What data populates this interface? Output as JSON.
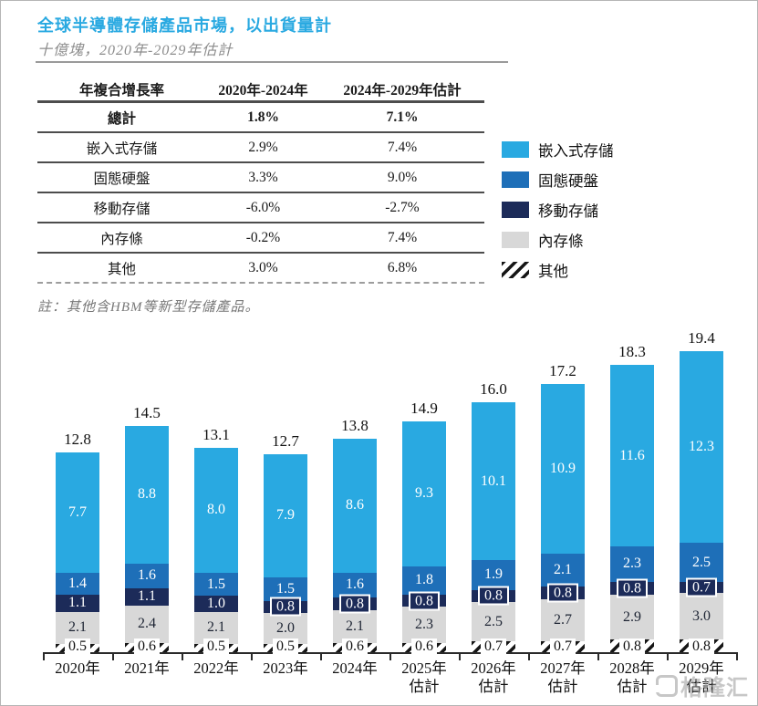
{
  "page": {
    "title": "全球半導體存儲產品市場，以出貨量計",
    "subtitle": "十億塊，2020年-2029年估計",
    "note": "註：其他含HBM等新型存儲產品。",
    "watermark": "格隆汇"
  },
  "colors": {
    "title_blue": "#29a9e1",
    "embedded": "#29a9e1",
    "ssd": "#1e6fb8",
    "mobile": "#1c2b59",
    "memory": "#d8d8d8",
    "stripe_dark": "#161616",
    "axis": "#2a2a2a"
  },
  "table": {
    "header": [
      "年複合增長率",
      "2020年-2024年",
      "2024年-2029年估計"
    ],
    "rows": [
      {
        "label": "總計",
        "cagr_2020_2024": "1.8%",
        "cagr_2024_2029": "7.1%",
        "bold": true
      },
      {
        "label": "嵌入式存儲",
        "cagr_2020_2024": "2.9%",
        "cagr_2024_2029": "7.4%",
        "bold": false
      },
      {
        "label": "固態硬盤",
        "cagr_2020_2024": "3.3%",
        "cagr_2024_2029": "9.0%",
        "bold": false
      },
      {
        "label": "移動存儲",
        "cagr_2020_2024": "-6.0%",
        "cagr_2024_2029": "-2.7%",
        "bold": false
      },
      {
        "label": "內存條",
        "cagr_2020_2024": "-0.2%",
        "cagr_2024_2029": "7.4%",
        "bold": false
      },
      {
        "label": "其他",
        "cagr_2020_2024": "3.0%",
        "cagr_2024_2029": "6.8%",
        "bold": false
      }
    ]
  },
  "legend": [
    {
      "label": "嵌入式存儲",
      "swatch": "embedded"
    },
    {
      "label": "固態硬盤",
      "swatch": "ssd"
    },
    {
      "label": "移動存儲",
      "swatch": "mobile"
    },
    {
      "label": "內存條",
      "swatch": "memory"
    },
    {
      "label": "其他",
      "swatch": "stripes"
    }
  ],
  "chart_data": {
    "type": "bar",
    "stacked": true,
    "title": "全球半導體存儲產品市場，以出貨量計",
    "unit": "十億塊",
    "categories": [
      "2020年",
      "2021年",
      "2022年",
      "2023年",
      "2024年",
      "2025年估計",
      "2026年估計",
      "2027年估計",
      "2028年估計",
      "2029年估計"
    ],
    "category_lines": [
      [
        "2020年"
      ],
      [
        "2021年"
      ],
      [
        "2022年"
      ],
      [
        "2023年"
      ],
      [
        "2024年"
      ],
      [
        "2025年",
        "估計"
      ],
      [
        "2026年",
        "估計"
      ],
      [
        "2027年",
        "估計"
      ],
      [
        "2028年",
        "估計"
      ],
      [
        "2029年",
        "估計"
      ]
    ],
    "series": [
      {
        "key": "embedded",
        "name": "嵌入式存儲",
        "color": "#29a9e1",
        "values": [
          7.7,
          8.8,
          8.0,
          7.9,
          8.6,
          9.3,
          10.1,
          10.9,
          11.6,
          12.3
        ]
      },
      {
        "key": "ssd",
        "name": "固態硬盤",
        "color": "#1e6fb8",
        "values": [
          1.4,
          1.6,
          1.5,
          1.5,
          1.6,
          1.8,
          1.9,
          2.1,
          2.3,
          2.5
        ]
      },
      {
        "key": "mobile",
        "name": "移動存儲",
        "color": "#1c2b59",
        "values": [
          1.1,
          1.1,
          1.0,
          0.8,
          0.8,
          0.8,
          0.8,
          0.8,
          0.8,
          0.7
        ]
      },
      {
        "key": "memory",
        "name": "內存條",
        "color": "#d8d8d8",
        "values": [
          2.1,
          2.4,
          2.1,
          2.0,
          2.1,
          2.3,
          2.5,
          2.7,
          2.9,
          3.0
        ]
      },
      {
        "key": "other",
        "name": "其他",
        "pattern": "diagonal-stripes",
        "values": [
          0.5,
          0.6,
          0.5,
          0.5,
          0.6,
          0.6,
          0.7,
          0.7,
          0.8,
          0.8
        ]
      }
    ],
    "stack_order_bottom_to_top": [
      "其他",
      "內存條",
      "移動存儲",
      "固態硬盤",
      "嵌入式存儲"
    ],
    "totals": [
      12.8,
      14.5,
      13.1,
      12.7,
      13.8,
      14.9,
      16.0,
      17.2,
      18.3,
      19.4
    ],
    "ylim": [
      0,
      20
    ],
    "grid": false,
    "legend_position": "right-of-table"
  }
}
